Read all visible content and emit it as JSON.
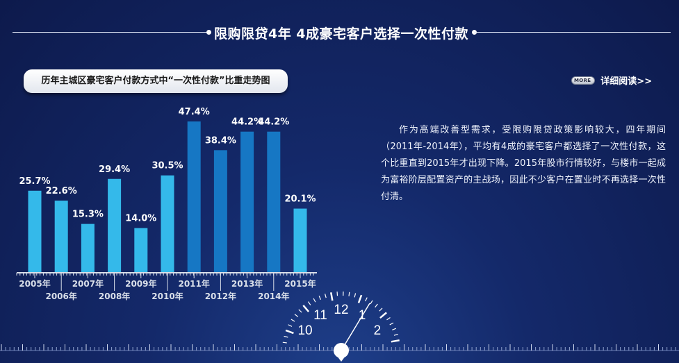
{
  "page": {
    "title": "限购限贷4年 4成豪宅客户选择一次性付款"
  },
  "chart_tag": "历年主城区豪宅客户付款方式中“一次性付款”比重走势图",
  "more_link": {
    "badge": "MORE",
    "label": "详细阅读>>"
  },
  "description": "作为高端改善型需求，受限购限贷政策影响较大，四年期间（2011年-2014年），平均有4成的豪宅客户都选择了一次性付款，这个比重直到2015年才出现下降。2015年股市行情较好，与楼市一起成为富裕阶层配置资产的主战场，因此不少客户在置业时不再选择一次性付清。",
  "clock_numbers": [
    "10",
    "11",
    "12",
    "1",
    "2"
  ],
  "colors": {
    "bar_light": "#34b9ea",
    "bar_dark": "#1677c4",
    "axis": "#d9dfe9"
  },
  "chart_data": {
    "type": "bar",
    "title": "历年主城区豪宅客户付款方式中“一次性付款”比重走势图",
    "categories": [
      "2005年",
      "2006年",
      "2007年",
      "2008年",
      "2009年",
      "2010年",
      "2011年",
      "2012年",
      "2013年",
      "2014年",
      "2015年"
    ],
    "values": [
      25.7,
      22.6,
      15.3,
      29.4,
      14.0,
      30.5,
      47.4,
      38.4,
      44.2,
      44.2,
      20.1
    ],
    "data_labels": [
      "25.7%",
      "22.6%",
      "15.3%",
      "29.4%",
      "14.0%",
      "30.5%",
      "47.4%",
      "38.4%",
      "44.2%",
      "44.2%",
      "20.1%"
    ],
    "highlight_years": [
      "2011年",
      "2012年",
      "2013年",
      "2014年"
    ],
    "ylim": [
      0,
      50
    ],
    "xlabel": "",
    "ylabel": "",
    "grid": false,
    "legend": "none"
  }
}
